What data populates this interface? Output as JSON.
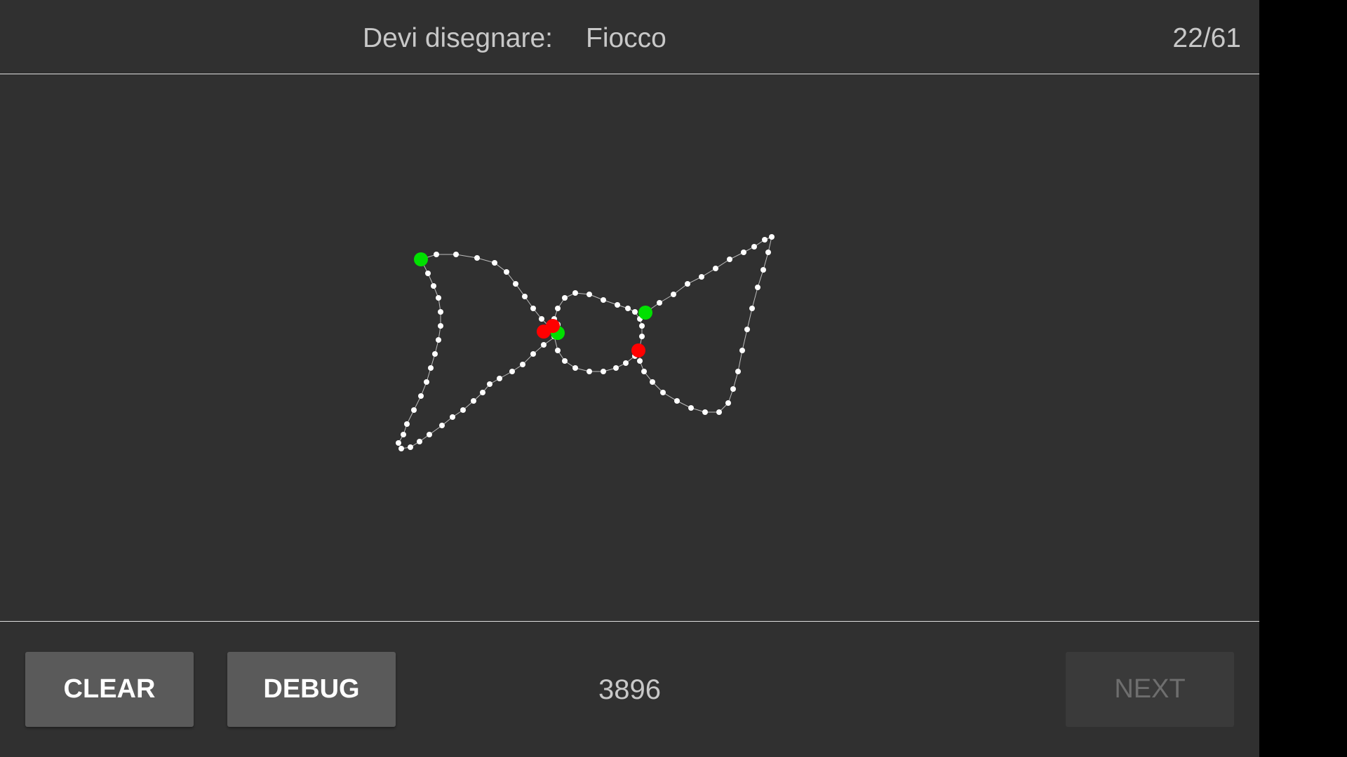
{
  "header": {
    "prompt_label": "Devi disegnare:",
    "prompt_word": "Fiocco",
    "progress": "22/61"
  },
  "footer": {
    "clear_label": "CLEAR",
    "debug_label": "DEBUG",
    "score": "3896",
    "next_label": "NEXT"
  },
  "colors": {
    "background": "#303030",
    "stroke_point": "#ffffff",
    "stroke_start": "#00e000",
    "stroke_end": "#ff0000"
  }
}
